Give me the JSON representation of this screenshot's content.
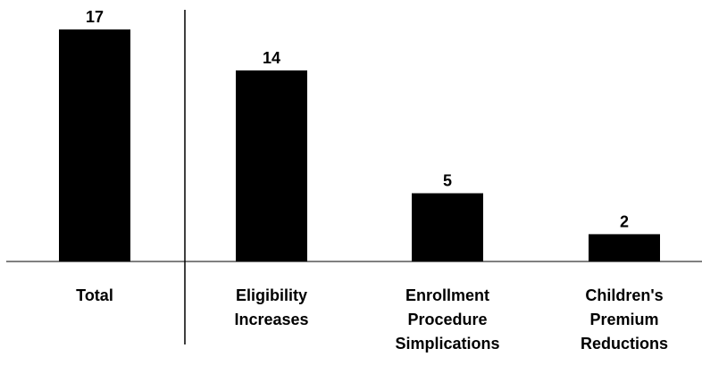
{
  "chart_data": {
    "type": "bar",
    "categories": [
      [
        "Total"
      ],
      [
        "Eligibility",
        "Increases"
      ],
      [
        "Enrollment",
        "Procedure",
        "Simplications"
      ],
      [
        "Children's",
        "Premium",
        "Reductions"
      ]
    ],
    "values": [
      17,
      14,
      5,
      2
    ],
    "value_labels": [
      "17",
      "14",
      "5",
      "2"
    ],
    "bar_color": "#000000",
    "ylim": [
      0,
      17
    ],
    "grid": false,
    "separator_after_index": 0
  }
}
